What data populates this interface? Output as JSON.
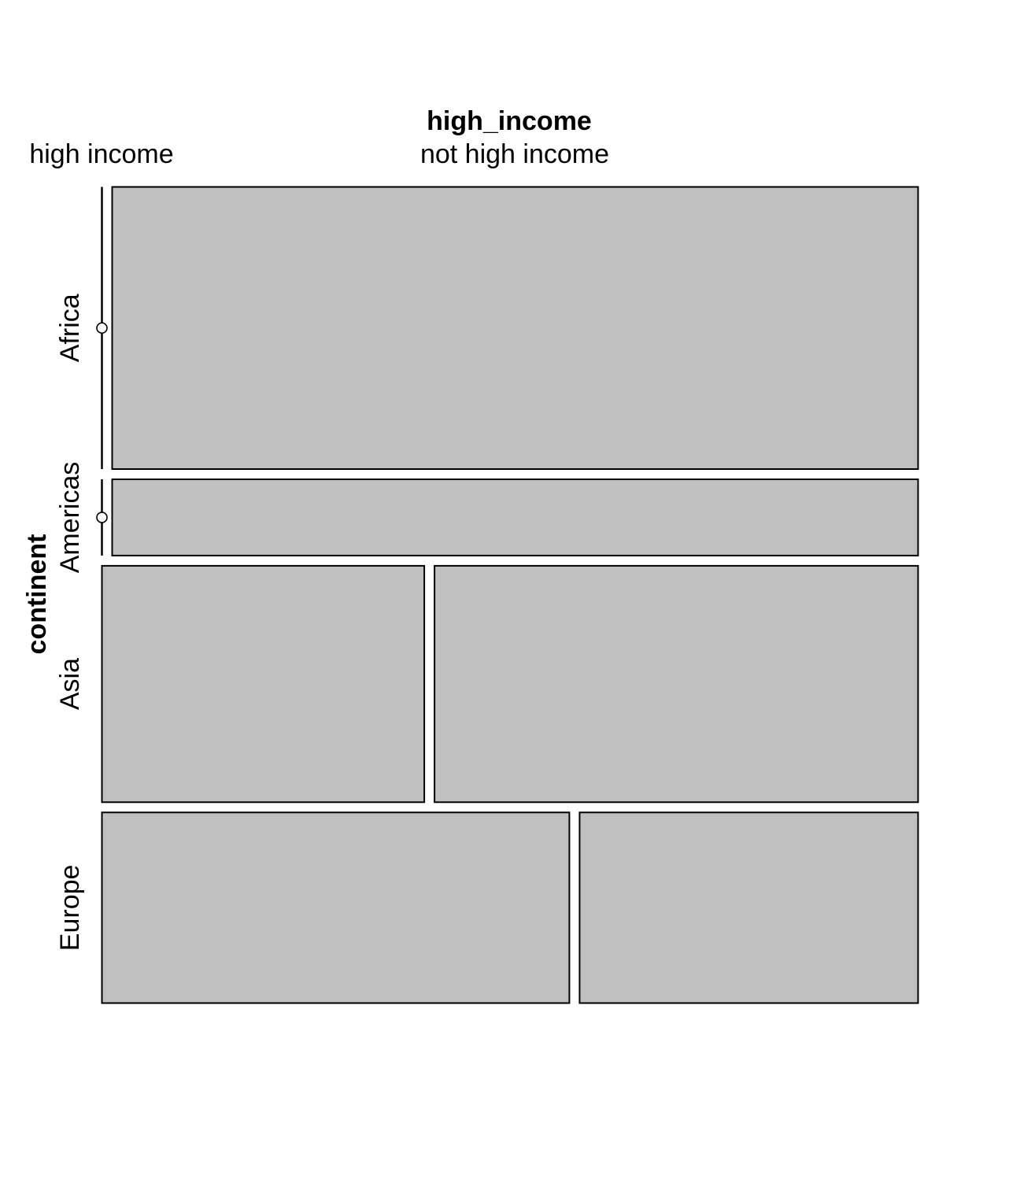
{
  "chart_data": {
    "type": "mosaic",
    "column_variable": "high_income",
    "row_variable": "continent",
    "column_levels": [
      "high income",
      "not high income"
    ],
    "row_levels": [
      "Africa",
      "Americas",
      "Asia",
      "Europe"
    ],
    "row_proportions": [
      0.37,
      0.1,
      0.31,
      0.25
    ],
    "high_income_share_by_row": [
      0.0,
      0.0,
      0.4,
      0.58
    ],
    "fill_color": "#c0c0c0",
    "zero_cell_marker": "circle"
  }
}
